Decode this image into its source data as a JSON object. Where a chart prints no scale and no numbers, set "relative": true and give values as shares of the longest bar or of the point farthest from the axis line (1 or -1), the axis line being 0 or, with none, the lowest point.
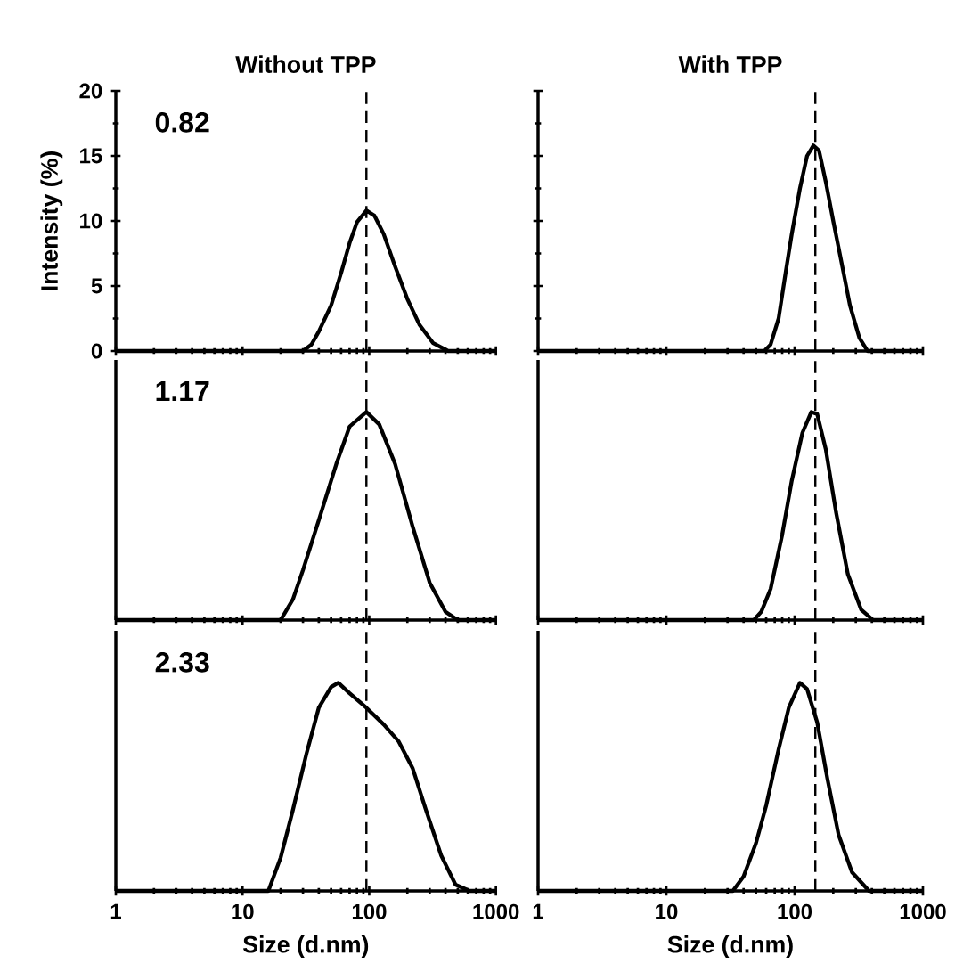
{
  "chart_data": [
    {
      "type": "line",
      "title": "Without TPP",
      "ylabel": "Intensity (%)",
      "annotations": [
        "0.82"
      ],
      "color": "#000000",
      "x": [
        1,
        30,
        35,
        40,
        50,
        60,
        70,
        80,
        95,
        110,
        130,
        160,
        200,
        250,
        320,
        420,
        1000
      ],
      "values": [
        0,
        0,
        0.5,
        1.5,
        3.5,
        6,
        8.3,
        9.9,
        10.8,
        10.4,
        9,
        6.5,
        4,
        2,
        0.6,
        0,
        0
      ],
      "xlim": [
        1,
        1000
      ],
      "xticks": [
        1,
        10,
        100,
        1000
      ],
      "ylim": [
        0,
        20
      ],
      "yticks": [
        0,
        5,
        10,
        15,
        20
      ],
      "log": "x",
      "tick_labels": "y",
      "ref_lines": [
        {
          "axis": "x",
          "value": 95,
          "line_style": "dashed"
        }
      ]
    },
    {
      "type": "line",
      "title": "With TPP",
      "color": "#000000",
      "x": [
        1,
        58,
        65,
        75,
        85,
        95,
        110,
        125,
        140,
        155,
        175,
        200,
        230,
        270,
        320,
        370,
        1000
      ],
      "values": [
        0,
        0,
        0.5,
        2.5,
        6,
        9,
        12.5,
        15,
        15.8,
        15.4,
        13,
        10,
        7,
        3.5,
        1,
        0,
        0
      ],
      "xlim": [
        1,
        1000
      ],
      "xticks": [
        1,
        10,
        100,
        1000
      ],
      "ylim": [
        0,
        20
      ],
      "yticks": [
        0,
        5,
        10,
        15,
        20
      ],
      "log": "x",
      "tick_labels": false,
      "ref_lines": [
        {
          "axis": "x",
          "value": 145,
          "line_style": "dashed"
        }
      ]
    },
    {
      "type": "line",
      "relative": true,
      "annotations": [
        "1.17"
      ],
      "color": "#000000",
      "x": [
        1,
        20,
        25,
        30,
        40,
        55,
        70,
        95,
        120,
        160,
        220,
        300,
        400,
        500,
        1000
      ],
      "values": [
        0,
        0,
        0.1,
        0.24,
        0.48,
        0.75,
        0.93,
        1,
        0.94,
        0.75,
        0.45,
        0.18,
        0.04,
        0,
        0
      ],
      "xlim": [
        1,
        1000
      ],
      "xticks": [
        1,
        10,
        100,
        1000
      ],
      "log": "x",
      "tick_labels": false,
      "ref_lines": [
        {
          "axis": "x",
          "value": 95,
          "line_style": "dashed"
        }
      ]
    },
    {
      "type": "line",
      "relative": true,
      "color": "#000000",
      "x": [
        1,
        48,
        55,
        65,
        80,
        95,
        115,
        135,
        150,
        175,
        210,
        260,
        330,
        410,
        1000
      ],
      "values": [
        0,
        0,
        0.04,
        0.15,
        0.41,
        0.67,
        0.9,
        1,
        0.99,
        0.82,
        0.52,
        0.22,
        0.05,
        0,
        0
      ],
      "xlim": [
        1,
        1000
      ],
      "xticks": [
        1,
        10,
        100,
        1000
      ],
      "log": "x",
      "tick_labels": false,
      "ref_lines": [
        {
          "axis": "x",
          "value": 145,
          "line_style": "dashed"
        }
      ]
    },
    {
      "type": "line",
      "relative": true,
      "xlabel": "Size (d.nm)",
      "annotations": [
        "2.33"
      ],
      "color": "#000000",
      "x": [
        1,
        16,
        20,
        25,
        32,
        40,
        50,
        57,
        70,
        95,
        130,
        170,
        220,
        280,
        370,
        480,
        620,
        1000
      ],
      "values": [
        0,
        0,
        0.16,
        0.39,
        0.66,
        0.88,
        0.98,
        1,
        0.95,
        0.88,
        0.8,
        0.72,
        0.59,
        0.39,
        0.17,
        0.03,
        0,
        0
      ],
      "xlim": [
        1,
        1000
      ],
      "xticks": [
        1,
        10,
        100,
        1000
      ],
      "log": "x",
      "tick_labels": "x",
      "ref_lines": [
        {
          "axis": "x",
          "value": 95,
          "line_style": "dashed"
        }
      ]
    },
    {
      "type": "line",
      "relative": true,
      "xlabel": "Size (d.nm)",
      "color": "#000000",
      "x": [
        1,
        33,
        40,
        50,
        60,
        75,
        90,
        110,
        125,
        150,
        180,
        220,
        280,
        380,
        1000
      ],
      "values": [
        0,
        0,
        0.07,
        0.23,
        0.41,
        0.68,
        0.88,
        1,
        0.97,
        0.81,
        0.54,
        0.27,
        0.09,
        0,
        0
      ],
      "xlim": [
        1,
        1000
      ],
      "xticks": [
        1,
        10,
        100,
        1000
      ],
      "log": "x",
      "tick_labels": "x",
      "ref_lines": [
        {
          "axis": "x",
          "value": 145,
          "line_style": "dashed"
        }
      ]
    }
  ]
}
